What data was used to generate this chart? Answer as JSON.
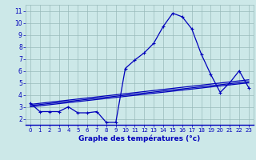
{
  "hours": [
    0,
    1,
    2,
    3,
    4,
    5,
    6,
    7,
    8,
    9,
    10,
    11,
    12,
    13,
    14,
    15,
    16,
    17,
    18,
    19,
    20,
    21,
    22,
    23
  ],
  "temps": [
    3.3,
    2.6,
    2.6,
    2.6,
    3.0,
    2.5,
    2.5,
    2.6,
    1.7,
    1.7,
    6.2,
    6.9,
    7.5,
    8.3,
    9.7,
    10.8,
    10.5,
    9.5,
    7.4,
    5.7,
    4.2,
    5.0,
    6.0,
    4.6
  ],
  "trend1_x": [
    0,
    23
  ],
  "trend1_y": [
    3.0,
    5.0
  ],
  "trend2_x": [
    0,
    23
  ],
  "trend2_y": [
    3.1,
    5.1
  ],
  "trend3_x": [
    0,
    23
  ],
  "trend3_y": [
    3.2,
    5.25
  ],
  "line_color": "#0000bb",
  "bg_color": "#cce8e8",
  "grid_color": "#99bbbb",
  "xlabel": "Graphe des températures (°c)",
  "ylim": [
    1.5,
    11.5
  ],
  "xlim": [
    -0.5,
    23.5
  ],
  "yticks": [
    2,
    3,
    4,
    5,
    6,
    7,
    8,
    9,
    10,
    11
  ],
  "xticks": [
    0,
    1,
    2,
    3,
    4,
    5,
    6,
    7,
    8,
    9,
    10,
    11,
    12,
    13,
    14,
    15,
    16,
    17,
    18,
    19,
    20,
    21,
    22,
    23
  ]
}
